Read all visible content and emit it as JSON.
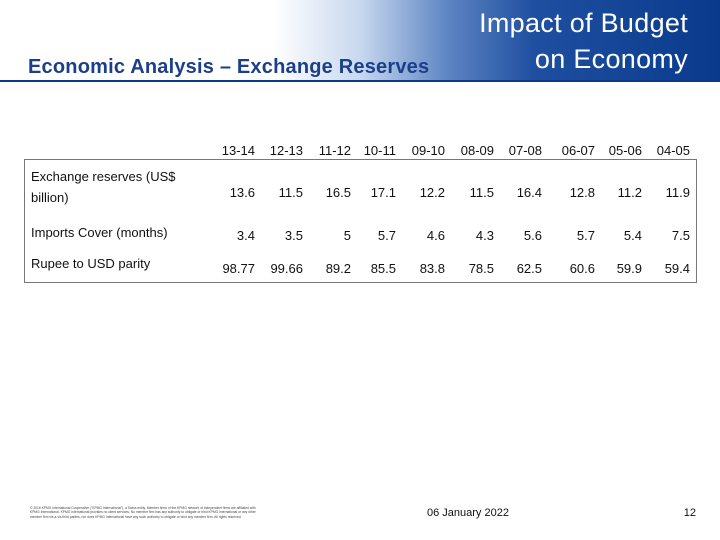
{
  "title": {
    "line1": "Impact of Budget",
    "line2": "on Economy"
  },
  "subtitle": "Economic Analysis – Exchange Reserves",
  "table": {
    "columns": [
      "13-14",
      "12-13",
      "11-12",
      "10-11",
      "09-10",
      "08-09",
      "07-08",
      "06-07",
      "05-06",
      "04-05"
    ],
    "rows": [
      {
        "label": "Exchange reserves (US$ billion)",
        "values": [
          "13.6",
          "11.5",
          "16.5",
          "17.1",
          "12.2",
          "11.5",
          "16.4",
          "12.8",
          "11.2",
          "11.9"
        ]
      },
      {
        "label": "Imports Cover (months)",
        "values": [
          "3.4",
          "3.5",
          "5",
          "5.7",
          "4.6",
          "4.3",
          "5.6",
          "5.7",
          "5.4",
          "7.5"
        ]
      },
      {
        "label": "Rupee to USD parity",
        "values": [
          "98.77",
          "99.66",
          "89.2",
          "85.5",
          "83.8",
          "78.5",
          "62.5",
          "60.6",
          "59.9",
          "59.4"
        ]
      }
    ]
  },
  "footer": {
    "legal": "© 2016 KPMG International Cooperative (\"KPMG International\"), a Swiss entity. Member firms of the KPMG network of independent firms are affiliated with KPMG International. KPMG International provides no client services. No member firm has any authority to obligate or bind KPMG International or any other member firm vis-à-vis third parties, nor does KPMG International have any such authority to obligate or bind any member firm. All rights reserved.",
    "date": "06 January 2022",
    "page": "12"
  }
}
